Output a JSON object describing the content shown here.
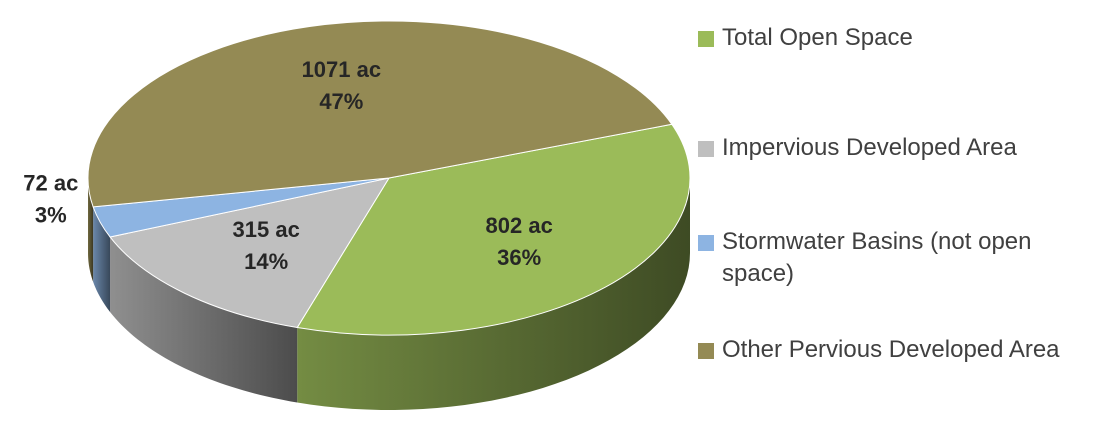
{
  "chart_data": {
    "type": "pie3d",
    "categories": [
      "Total Open Space",
      "Impervious Developed Area",
      "Stormwater Basins (not open space)",
      "Other Pervious Developed Area"
    ],
    "values": [
      802,
      315,
      72,
      1071
    ],
    "value_labels": [
      "802 ac",
      "315 ac",
      "72 ac",
      "1071 ac"
    ],
    "percents": [
      36,
      14,
      3,
      47
    ],
    "percent_labels": [
      "36%",
      "14%",
      "3%",
      "47%"
    ],
    "colors": [
      "#9bbb59",
      "#bfbfbf",
      "#8db4e2",
      "#948a54"
    ],
    "legend": "right"
  }
}
